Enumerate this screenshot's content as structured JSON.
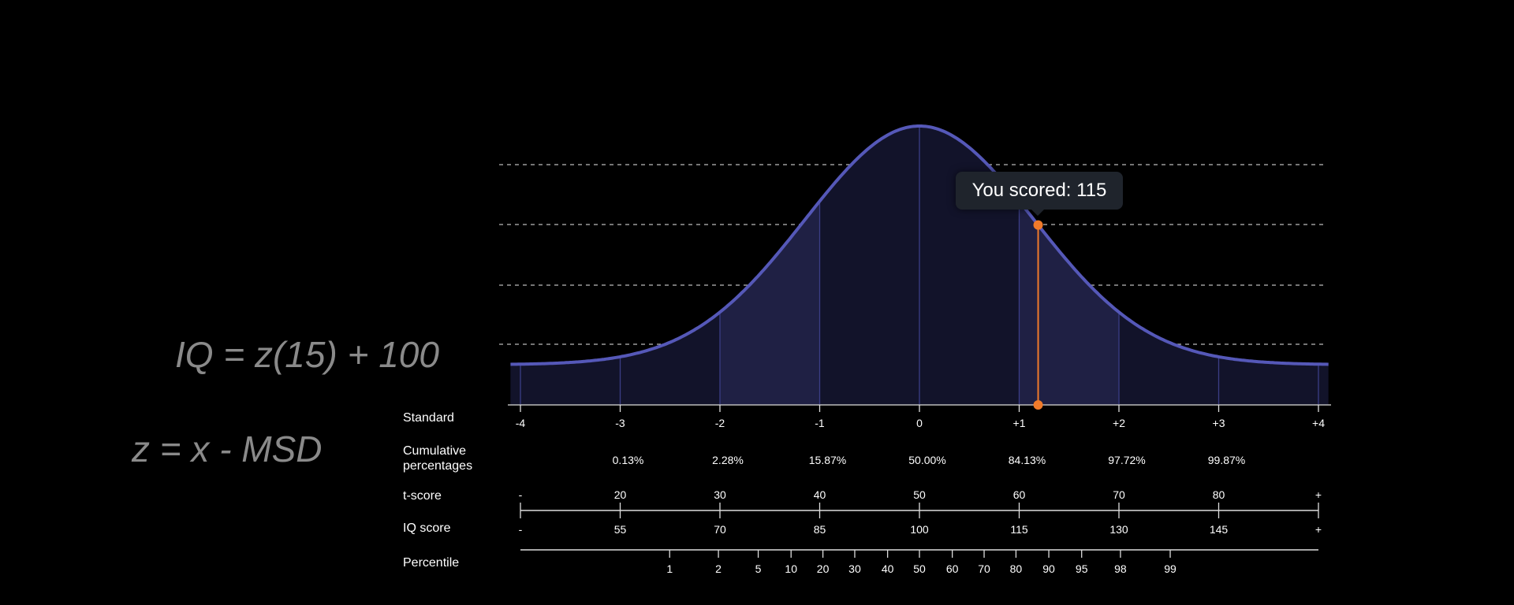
{
  "formulas": {
    "iq": "IQ = z(15) + 100",
    "z": "z = x - MSD"
  },
  "tooltip": {
    "text": "You scored: 115"
  },
  "row_labels": {
    "standard": "Standard",
    "cumulative": "Cumulative percentages",
    "t_score": "t-score",
    "iq_score": "IQ score",
    "percentile": "Percentile"
  },
  "chart_data": {
    "type": "area",
    "distribution": "normal",
    "x_range": [
      -4,
      4
    ],
    "grid": "horizontal dashed",
    "highlighted_bands": [
      [
        -2,
        -1
      ],
      [
        1,
        2
      ]
    ],
    "standard_ticks": [
      "-4",
      "-3",
      "-2",
      "-1",
      "0",
      "+1",
      "+2",
      "+3",
      "+4"
    ],
    "cumulative_percentages": [
      "0.13%",
      "2.28%",
      "15.87%",
      "50.00%",
      "84.13%",
      "97.72%",
      "99.87%"
    ],
    "t_scores": [
      "-",
      "20",
      "30",
      "40",
      "50",
      "60",
      "70",
      "80",
      "+"
    ],
    "iq_scores": [
      "-",
      "55",
      "70",
      "85",
      "100",
      "115",
      "130",
      "145",
      "+"
    ],
    "percentiles": [
      "1",
      "2",
      "5",
      "10",
      "20",
      "30",
      "40",
      "50",
      "60",
      "70",
      "80",
      "90",
      "95",
      "98",
      "99"
    ],
    "user_score": 115,
    "colors": {
      "curve": "#5558b8",
      "fill": "#12132a",
      "band": "#1f2044",
      "marker": "#f07a2a",
      "grid": "#bbbbbb"
    }
  }
}
